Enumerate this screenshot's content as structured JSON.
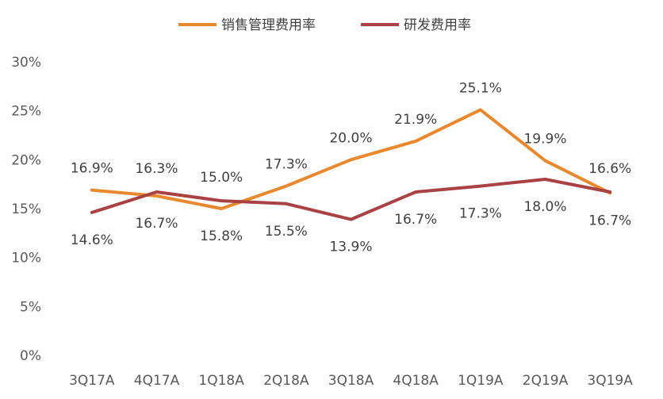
{
  "chart_data": {
    "type": "line",
    "categories": [
      "3Q17A",
      "4Q17A",
      "1Q18A",
      "2Q18A",
      "3Q18A",
      "4Q18A",
      "1Q19A",
      "2Q19A",
      "3Q19A"
    ],
    "series": [
      {
        "name": "销售管理费用率",
        "color": "#E8892F",
        "values": [
          16.9,
          16.3,
          15.0,
          17.3,
          20.0,
          21.9,
          25.1,
          19.9,
          16.6
        ],
        "labels": [
          "16.9%",
          "16.3%",
          "15.0%",
          "17.3%",
          "20.0%",
          "21.9%",
          "25.1%",
          "19.9%",
          "16.6%"
        ]
      },
      {
        "name": "研发费用率",
        "color": "#A84245",
        "values": [
          14.6,
          16.7,
          15.8,
          15.5,
          13.9,
          16.7,
          17.3,
          18.0,
          16.7
        ],
        "labels": [
          "14.6%",
          "16.7%",
          "15.8%",
          "15.5%",
          "13.9%",
          "16.7%",
          "17.3%",
          "18.0%",
          "16.7%"
        ]
      }
    ],
    "y_ticks": [
      "0%",
      "5%",
      "10%",
      "15%",
      "20%",
      "25%",
      "30%"
    ],
    "ylim": [
      0,
      30
    ],
    "legend_position": "top-center",
    "grid": false
  }
}
